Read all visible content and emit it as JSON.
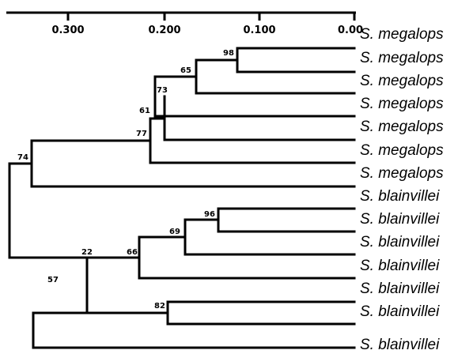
{
  "scale_axis": {
    "ticks": [
      "0.300",
      "0.200",
      "0.100",
      "0.00"
    ]
  },
  "leaves": [
    "S. megalops",
    "S. megalops",
    "S. megalops",
    "S. megalops",
    "S. megalops",
    "S. megalops",
    "S. megalops",
    "S. blainvillei",
    "S. blainvillei",
    "S. blainvillei",
    "S. blainvillei",
    "S. blainvillei",
    "S. blainvillei",
    "S. blainvillei"
  ],
  "node_labels": [
    "98",
    "65",
    "73",
    "61",
    "77",
    "74",
    "96",
    "69",
    "66",
    "22",
    "57",
    "82"
  ]
}
